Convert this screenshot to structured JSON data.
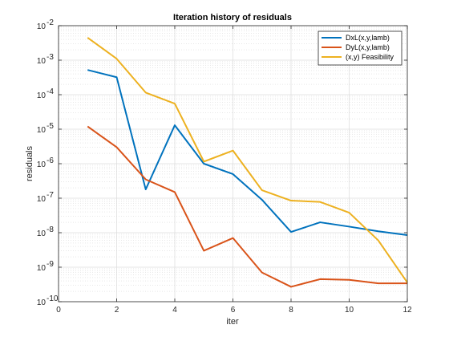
{
  "chart_data": {
    "type": "line",
    "title": "Iteration history of residuals",
    "xlabel": "iter",
    "ylabel": "residuals",
    "xlim": [
      0,
      12
    ],
    "ylim_exponents": [
      -10,
      -2
    ],
    "yscale": "log",
    "xticks": [
      "0",
      "2",
      "4",
      "6",
      "8",
      "10",
      "12"
    ],
    "ytick_base": "10",
    "ytick_exponents": [
      "-10",
      "-9",
      "-8",
      "-7",
      "-6",
      "-5",
      "-4",
      "-3",
      "-2"
    ],
    "grid": true,
    "minor_grid": true,
    "legend_position": "top-right",
    "x": [
      1,
      2,
      3,
      4,
      5,
      6,
      7,
      8,
      9,
      10,
      11,
      12
    ],
    "series": [
      {
        "name": "DxL(x,y,lamb)",
        "color": "#0072BD",
        "values": [
          0.00052,
          0.00032,
          1.8e-07,
          1.3e-05,
          1e-06,
          5e-07,
          9e-08,
          1.05e-08,
          2e-08,
          1.5e-08,
          1.1e-08,
          8.5e-09
        ]
      },
      {
        "name": "DyL(x,y,lamb)",
        "color": "#D95319",
        "values": [
          1.2e-05,
          3e-06,
          3.5e-07,
          1.5e-07,
          3e-09,
          7e-09,
          7e-10,
          2.7e-10,
          4.5e-10,
          4.3e-10,
          3.4e-10,
          3.4e-10
        ]
      },
      {
        "name": "(x,y) Feasibility",
        "color": "#EDB120",
        "values": [
          0.0045,
          0.0011,
          0.000115,
          5.5e-05,
          1.15e-06,
          2.4e-06,
          1.7e-07,
          8.5e-08,
          7.8e-08,
          3.8e-08,
          6e-09,
          3.6e-10
        ]
      }
    ]
  }
}
